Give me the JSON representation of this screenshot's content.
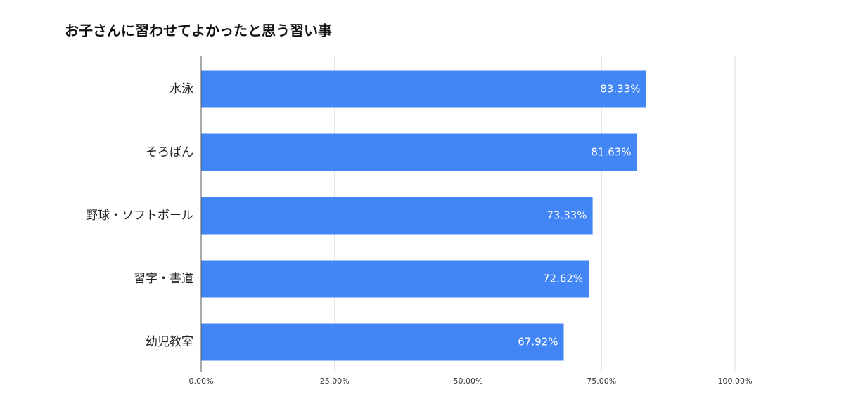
{
  "chart_data": {
    "type": "hbar",
    "title": "お子さんに習わせてよかったと思う習い事",
    "categories": [
      "水泳",
      "そろばん",
      "野球・ソフトボール",
      "習字・書道",
      "幼児教室"
    ],
    "values": [
      83.33,
      81.63,
      73.33,
      72.62,
      67.92
    ],
    "value_labels": [
      "83.33%",
      "81.63%",
      "73.33%",
      "72.62%",
      "67.92%"
    ],
    "color": "#4285f4",
    "xlim": [
      0,
      100
    ],
    "xticks": [
      {
        "value": 0,
        "label": "0.00%"
      },
      {
        "value": 25,
        "label": "25.00%"
      },
      {
        "value": 50,
        "label": "50.00%"
      },
      {
        "value": 75,
        "label": "75.00%"
      },
      {
        "value": 100,
        "label": "100.00%"
      }
    ],
    "grid": true
  }
}
